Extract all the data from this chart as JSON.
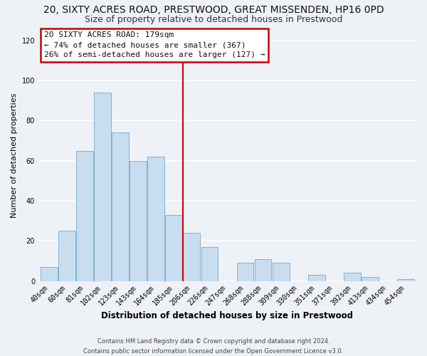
{
  "title": "20, SIXTY ACRES ROAD, PRESTWOOD, GREAT MISSENDEN, HP16 0PD",
  "subtitle": "Size of property relative to detached houses in Prestwood",
  "xlabel": "Distribution of detached houses by size in Prestwood",
  "ylabel": "Number of detached properties",
  "bar_color": "#c8ddef",
  "bar_edge_color": "#7fb3d3",
  "bins": [
    "40sqm",
    "60sqm",
    "81sqm",
    "102sqm",
    "123sqm",
    "143sqm",
    "164sqm",
    "185sqm",
    "206sqm",
    "226sqm",
    "247sqm",
    "268sqm",
    "288sqm",
    "309sqm",
    "330sqm",
    "351sqm",
    "371sqm",
    "392sqm",
    "413sqm",
    "434sqm",
    "454sqm"
  ],
  "values": [
    7,
    25,
    65,
    94,
    74,
    60,
    62,
    33,
    24,
    17,
    0,
    9,
    11,
    9,
    0,
    3,
    0,
    4,
    2,
    0,
    1
  ],
  "vline_x": 7.5,
  "vline_color": "#cc0000",
  "annotation_title": "20 SIXTY ACRES ROAD: 179sqm",
  "annotation_line1": "← 74% of detached houses are smaller (367)",
  "annotation_line2": "26% of semi-detached houses are larger (127) →",
  "annotation_box_color": "#ffffff",
  "annotation_box_edge_color": "#cc0000",
  "footer1": "Contains HM Land Registry data © Crown copyright and database right 2024.",
  "footer2": "Contains public sector information licensed under the Open Government Licence v3.0.",
  "ylim": [
    0,
    125
  ],
  "yticks": [
    0,
    20,
    40,
    60,
    80,
    100,
    120
  ],
  "background_color": "#eef2f7",
  "grid_color": "#ffffff",
  "title_fontsize": 10,
  "subtitle_fontsize": 9,
  "tick_fontsize": 7,
  "ylabel_fontsize": 8,
  "xlabel_fontsize": 8.5,
  "footer_fontsize": 6,
  "annotation_fontsize": 8
}
